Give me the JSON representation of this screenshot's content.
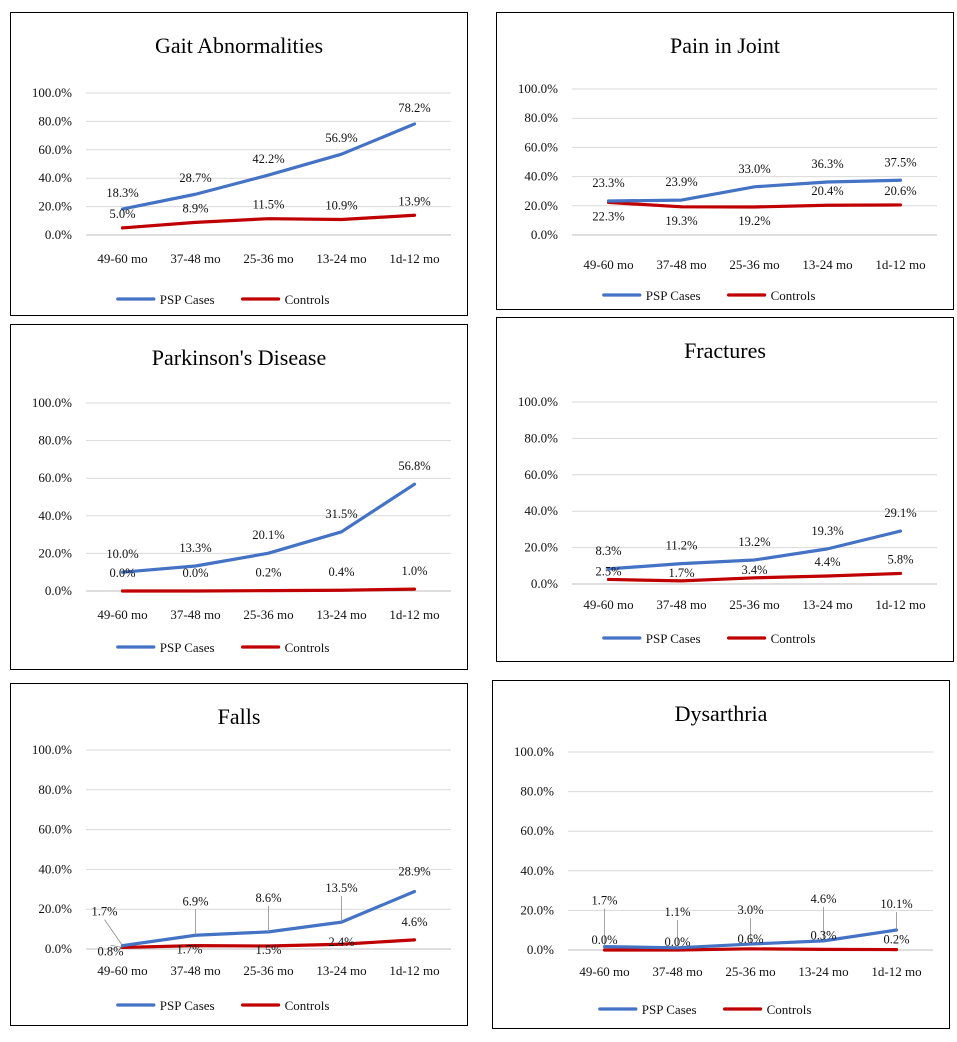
{
  "chart_data": [
    {
      "type": "line",
      "title": "Gait Abnormalities",
      "categories": [
        "49-60 mo",
        "37-48 mo",
        "25-36 mo",
        "13-24 mo",
        "1d-12 mo"
      ],
      "yticks": [
        "0.0%",
        "20.0%",
        "40.0%",
        "60.0%",
        "80.0%",
        "100.0%"
      ],
      "ylim": [
        0,
        100
      ],
      "legend": "bottom",
      "series": [
        {
          "name": "PSP Cases",
          "color": "#4472C4",
          "values": [
            18.3,
            28.7,
            42.2,
            56.9,
            78.2
          ],
          "labels": [
            "18.3%",
            "28.7%",
            "42.2%",
            "56.9%",
            "78.2%"
          ]
        },
        {
          "name": "Controls",
          "color": "#C00000",
          "values": [
            5.0,
            8.9,
            11.5,
            10.9,
            13.9
          ],
          "labels": [
            "5.0%",
            "8.9%",
            "11.5%",
            "10.9%",
            "13.9%"
          ]
        }
      ]
    },
    {
      "type": "line",
      "title": "Pain in Joint",
      "categories": [
        "49-60 mo",
        "37-48 mo",
        "25-36 mo",
        "13-24 mo",
        "1d-12 mo"
      ],
      "yticks": [
        "0.0%",
        "20.0%",
        "40.0%",
        "60.0%",
        "80.0%",
        "100.0%"
      ],
      "ylim": [
        0,
        100
      ],
      "legend": "bottom",
      "series": [
        {
          "name": "PSP Cases",
          "color": "#4472C4",
          "values": [
            23.3,
            23.9,
            33.0,
            36.3,
            37.5
          ],
          "labels": [
            "23.3%",
            "23.9%",
            "33.0%",
            "36.3%",
            "37.5%"
          ]
        },
        {
          "name": "Controls",
          "color": "#C00000",
          "values": [
            22.3,
            19.3,
            19.2,
            20.4,
            20.6
          ],
          "labels": [
            "22.3%",
            "19.3%",
            "19.2%",
            "20.4%",
            "20.6%"
          ]
        }
      ]
    },
    {
      "type": "line",
      "title": "Parkinson's Disease",
      "categories": [
        "49-60 mo",
        "37-48 mo",
        "25-36 mo",
        "13-24 mo",
        "1d-12 mo"
      ],
      "yticks": [
        "0.0%",
        "20.0%",
        "40.0%",
        "60.0%",
        "80.0%",
        "100.0%"
      ],
      "ylim": [
        0,
        100
      ],
      "legend": "bottom",
      "series": [
        {
          "name": "PSP Cases",
          "color": "#4472C4",
          "values": [
            10.0,
            13.3,
            20.1,
            31.5,
            56.8
          ],
          "labels": [
            "10.0%",
            "13.3%",
            "20.1%",
            "31.5%",
            "56.8%"
          ]
        },
        {
          "name": "Controls",
          "color": "#C00000",
          "values": [
            0.0,
            0.0,
            0.2,
            0.4,
            1.0
          ],
          "labels": [
            "0.0%",
            "0.0%",
            "0.2%",
            "0.4%",
            "1.0%"
          ]
        }
      ]
    },
    {
      "type": "line",
      "title": "Fractures",
      "categories": [
        "49-60 mo",
        "37-48 mo",
        "25-36 mo",
        "13-24 mo",
        "1d-12 mo"
      ],
      "yticks": [
        "0.0%",
        "20.0%",
        "40.0%",
        "60.0%",
        "80.0%",
        "100.0%"
      ],
      "ylim": [
        0,
        100
      ],
      "legend": "bottom",
      "series": [
        {
          "name": "PSP Cases",
          "color": "#4472C4",
          "values": [
            8.3,
            11.2,
            13.2,
            19.3,
            29.1
          ],
          "labels": [
            "8.3%",
            "11.2%",
            "13.2%",
            "19.3%",
            "29.1%"
          ]
        },
        {
          "name": "Controls",
          "color": "#C00000",
          "values": [
            2.5,
            1.7,
            3.4,
            4.4,
            5.8
          ],
          "labels": [
            "2.5%",
            "1.7%",
            "3.4%",
            "4.4%",
            "5.8%"
          ]
        }
      ]
    },
    {
      "type": "line",
      "title": "Falls",
      "categories": [
        "49-60 mo",
        "37-48 mo",
        "25-36 mo",
        "13-24 mo",
        "1d-12 mo"
      ],
      "yticks": [
        "0.0%",
        "20.0%",
        "40.0%",
        "60.0%",
        "80.0%",
        "100.0%"
      ],
      "ylim": [
        0,
        100
      ],
      "legend": "bottom",
      "series": [
        {
          "name": "PSP Cases",
          "color": "#4472C4",
          "values": [
            1.7,
            6.9,
            8.6,
            13.5,
            28.9
          ],
          "labels": [
            "1.7%",
            "6.9%",
            "8.6%",
            "13.5%",
            "28.9%"
          ]
        },
        {
          "name": "Controls",
          "color": "#C00000",
          "values": [
            0.8,
            1.7,
            1.5,
            2.4,
            4.6
          ],
          "labels": [
            "0.8%",
            "1.7%",
            "1.5%",
            "2.4%",
            "4.6%"
          ]
        }
      ]
    },
    {
      "type": "line",
      "title": "Dysarthria",
      "categories": [
        "49-60 mo",
        "37-48 mo",
        "25-36 mo",
        "13-24 mo",
        "1d-12 mo"
      ],
      "yticks": [
        "0.0%",
        "20.0%",
        "40.0%",
        "60.0%",
        "80.0%",
        "100.0%"
      ],
      "ylim": [
        0,
        100
      ],
      "legend": "bottom",
      "series": [
        {
          "name": "PSP Cases",
          "color": "#4472C4",
          "values": [
            1.7,
            1.1,
            3.0,
            4.6,
            10.1
          ],
          "labels": [
            "1.7%",
            "1.1%",
            "3.0%",
            "4.6%",
            "10.1%"
          ]
        },
        {
          "name": "Controls",
          "color": "#C00000",
          "values": [
            0.0,
            0.0,
            0.6,
            0.3,
            0.2
          ],
          "labels": [
            "0.0%",
            "0.0%",
            "0.6%",
            "0.3%",
            "0.2%"
          ]
        }
      ]
    }
  ]
}
